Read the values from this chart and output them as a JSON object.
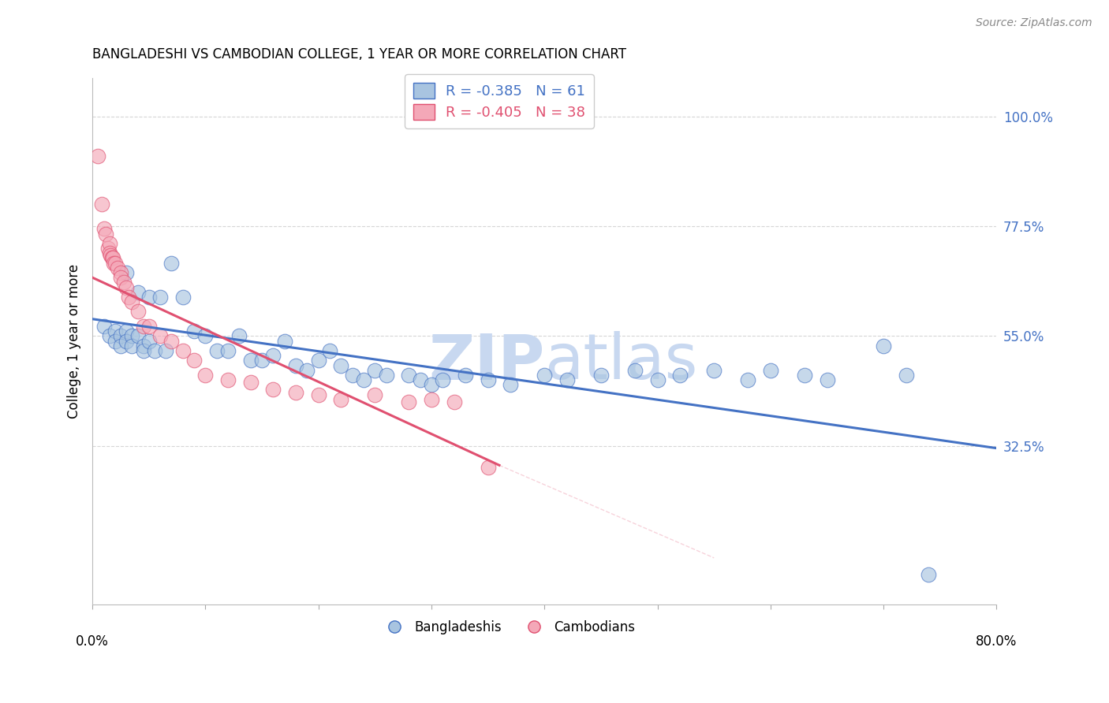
{
  "title": "BANGLADESHI VS CAMBODIAN COLLEGE, 1 YEAR OR MORE CORRELATION CHART",
  "source": "Source: ZipAtlas.com",
  "ylabel": "College, 1 year or more",
  "ytick_labels": [
    "100.0%",
    "77.5%",
    "55.0%",
    "32.5%"
  ],
  "ytick_values": [
    1.0,
    0.775,
    0.55,
    0.325
  ],
  "xlim": [
    0.0,
    0.8
  ],
  "ylim": [
    0.0,
    1.08
  ],
  "blue_color": "#A8C4E0",
  "blue_line_color": "#4472C4",
  "pink_color": "#F4A8B8",
  "pink_line_color": "#E05070",
  "right_tick_color": "#4472C4",
  "watermark_zip_color": "#C8D8F0",
  "watermark_atlas_color": "#C8D8F0",
  "legend_blue_R": "-0.385",
  "legend_blue_N": "61",
  "legend_pink_R": "-0.405",
  "legend_pink_N": "38",
  "blue_scatter_x": [
    0.01,
    0.015,
    0.02,
    0.02,
    0.025,
    0.025,
    0.03,
    0.03,
    0.03,
    0.035,
    0.035,
    0.04,
    0.04,
    0.045,
    0.045,
    0.05,
    0.05,
    0.055,
    0.06,
    0.065,
    0.07,
    0.08,
    0.09,
    0.1,
    0.11,
    0.12,
    0.13,
    0.14,
    0.15,
    0.16,
    0.17,
    0.18,
    0.19,
    0.2,
    0.21,
    0.22,
    0.23,
    0.24,
    0.25,
    0.26,
    0.28,
    0.29,
    0.3,
    0.31,
    0.33,
    0.35,
    0.37,
    0.4,
    0.42,
    0.45,
    0.48,
    0.5,
    0.52,
    0.55,
    0.58,
    0.6,
    0.63,
    0.65,
    0.7,
    0.72,
    0.74
  ],
  "blue_scatter_y": [
    0.57,
    0.55,
    0.56,
    0.54,
    0.55,
    0.53,
    0.68,
    0.56,
    0.54,
    0.55,
    0.53,
    0.64,
    0.55,
    0.53,
    0.52,
    0.63,
    0.54,
    0.52,
    0.63,
    0.52,
    0.7,
    0.63,
    0.56,
    0.55,
    0.52,
    0.52,
    0.55,
    0.5,
    0.5,
    0.51,
    0.54,
    0.49,
    0.48,
    0.5,
    0.52,
    0.49,
    0.47,
    0.46,
    0.48,
    0.47,
    0.47,
    0.46,
    0.45,
    0.46,
    0.47,
    0.46,
    0.45,
    0.47,
    0.46,
    0.47,
    0.48,
    0.46,
    0.47,
    0.48,
    0.46,
    0.48,
    0.47,
    0.46,
    0.53,
    0.47,
    0.06
  ],
  "pink_scatter_x": [
    0.005,
    0.008,
    0.01,
    0.012,
    0.014,
    0.015,
    0.015,
    0.016,
    0.017,
    0.018,
    0.019,
    0.02,
    0.022,
    0.025,
    0.025,
    0.028,
    0.03,
    0.032,
    0.035,
    0.04,
    0.045,
    0.05,
    0.06,
    0.07,
    0.08,
    0.09,
    0.1,
    0.12,
    0.14,
    0.16,
    0.18,
    0.2,
    0.22,
    0.25,
    0.28,
    0.3,
    0.32,
    0.35
  ],
  "pink_scatter_y": [
    0.92,
    0.82,
    0.77,
    0.76,
    0.73,
    0.74,
    0.72,
    0.715,
    0.71,
    0.71,
    0.7,
    0.7,
    0.69,
    0.68,
    0.67,
    0.66,
    0.65,
    0.63,
    0.62,
    0.6,
    0.57,
    0.57,
    0.55,
    0.54,
    0.52,
    0.5,
    0.47,
    0.46,
    0.455,
    0.44,
    0.435,
    0.43,
    0.42,
    0.43,
    0.415,
    0.42,
    0.415,
    0.28
  ],
  "blue_line_x0": 0.0,
  "blue_line_y0": 0.585,
  "blue_line_x1": 0.8,
  "blue_line_y1": 0.32,
  "pink_line_x0": 0.0,
  "pink_line_y0": 0.67,
  "pink_line_x1": 0.36,
  "pink_line_y1": 0.285,
  "pink_line_ext_x1": 0.55,
  "pink_line_ext_y1": 0.095,
  "grid_color": "#CCCCCC",
  "background_color": "#FFFFFF"
}
